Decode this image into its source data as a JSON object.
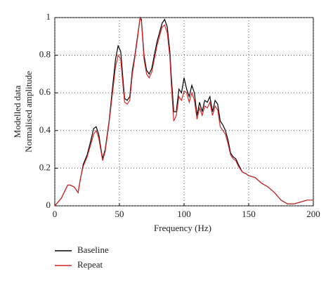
{
  "chart_data": {
    "type": "line",
    "x_label": "Frequency (Hz)",
    "y_label": [
      "Modelled data",
      "Normalised amplitude"
    ],
    "x": [
      0,
      5,
      10,
      12,
      15,
      18,
      20,
      22,
      25,
      28,
      30,
      32,
      34,
      36,
      37,
      39,
      42,
      45,
      47,
      49,
      51,
      53,
      54,
      56,
      58,
      60,
      62,
      64,
      66,
      67,
      69,
      71,
      73,
      75,
      77,
      79,
      81,
      83,
      85,
      87,
      89,
      90,
      92,
      94,
      96,
      98,
      100,
      102,
      104,
      106,
      108,
      110,
      112,
      114,
      116,
      118,
      120,
      122,
      124,
      126,
      128,
      130,
      132,
      134,
      136,
      138,
      140,
      142,
      145,
      148,
      150,
      155,
      160,
      165,
      170,
      175,
      180,
      185,
      190,
      195,
      200
    ],
    "series": [
      {
        "name": "Baseline",
        "color": "#000000",
        "values": [
          0,
          0.04,
          0.11,
          0.11,
          0.1,
          0.07,
          0.15,
          0.22,
          0.27,
          0.35,
          0.41,
          0.42,
          0.38,
          0.29,
          0.25,
          0.3,
          0.45,
          0.65,
          0.78,
          0.85,
          0.82,
          0.65,
          0.57,
          0.56,
          0.58,
          0.72,
          0.8,
          0.9,
          1.0,
          0.99,
          0.8,
          0.72,
          0.7,
          0.73,
          0.8,
          0.87,
          0.92,
          0.97,
          0.99,
          0.95,
          0.82,
          0.7,
          0.5,
          0.5,
          0.62,
          0.6,
          0.68,
          0.62,
          0.58,
          0.64,
          0.6,
          0.48,
          0.55,
          0.5,
          0.56,
          0.55,
          0.58,
          0.5,
          0.56,
          0.54,
          0.45,
          0.43,
          0.4,
          0.35,
          0.28,
          0.26,
          0.25,
          0.22,
          0.18,
          0.17,
          0.16,
          0.15,
          0.12,
          0.1,
          0.07,
          0.03,
          0.01,
          0.01,
          0.02,
          0.03,
          0.03
        ]
      },
      {
        "name": "Repeat",
        "color": "#d62728",
        "values": [
          0,
          0.04,
          0.11,
          0.11,
          0.1,
          0.07,
          0.15,
          0.21,
          0.26,
          0.33,
          0.38,
          0.4,
          0.36,
          0.28,
          0.24,
          0.29,
          0.44,
          0.62,
          0.74,
          0.8,
          0.78,
          0.62,
          0.55,
          0.54,
          0.56,
          0.7,
          0.79,
          0.89,
          1.0,
          0.98,
          0.78,
          0.7,
          0.68,
          0.71,
          0.78,
          0.85,
          0.9,
          0.95,
          0.96,
          0.92,
          0.79,
          0.66,
          0.45,
          0.48,
          0.58,
          0.56,
          0.61,
          0.6,
          0.55,
          0.6,
          0.56,
          0.46,
          0.52,
          0.48,
          0.53,
          0.52,
          0.55,
          0.48,
          0.53,
          0.51,
          0.42,
          0.4,
          0.38,
          0.33,
          0.27,
          0.25,
          0.24,
          0.21,
          0.18,
          0.17,
          0.16,
          0.15,
          0.12,
          0.1,
          0.07,
          0.03,
          0.01,
          0.01,
          0.02,
          0.03,
          0.03
        ]
      }
    ],
    "xlim": [
      0,
      200
    ],
    "xticks": [
      0,
      50,
      100,
      150,
      200
    ],
    "ylim": [
      0,
      1
    ],
    "yticks": [
      0,
      0.2,
      0.4,
      0.6,
      0.8,
      1
    ],
    "grid": true
  }
}
